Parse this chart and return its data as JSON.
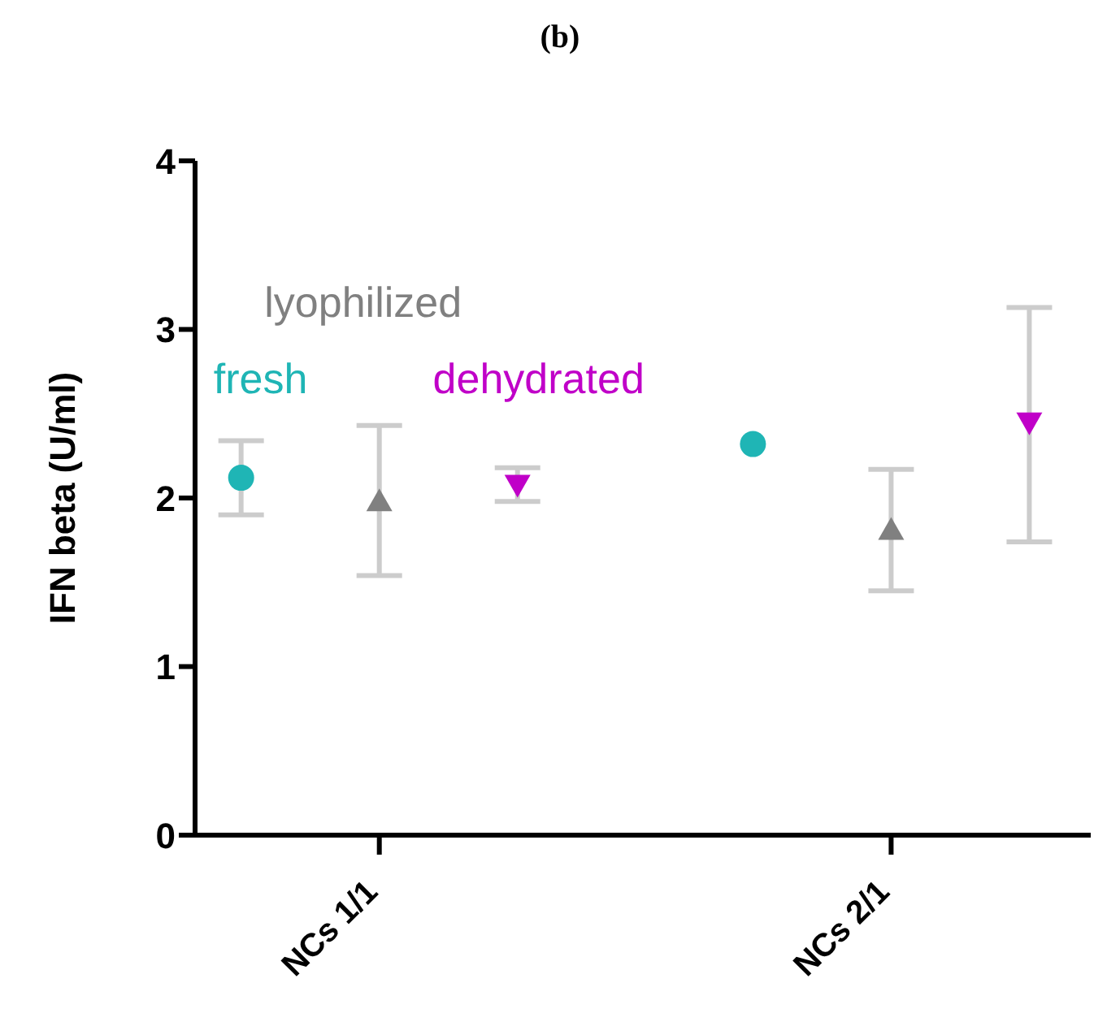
{
  "chart_data": {
    "type": "scatter",
    "title": "(b)",
    "ylabel": "IFN beta (U/ml)",
    "categories": [
      "NCs 1/1",
      "NCs 2/1"
    ],
    "ylim": [
      0,
      4
    ],
    "yticks": [
      0,
      1,
      2,
      3,
      4
    ],
    "series": [
      {
        "name": "fresh",
        "color": "#1fb5b5",
        "marker": "circle",
        "values": [
          2.12,
          2.32
        ],
        "errors": [
          [
            1.9,
            2.34
          ],
          null
        ]
      },
      {
        "name": "lyophilized",
        "color": "#808080",
        "marker": "triangle",
        "values": [
          1.98,
          1.81
        ],
        "errors": [
          [
            1.54,
            2.43
          ],
          [
            1.45,
            2.17
          ]
        ]
      },
      {
        "name": "dehydrated",
        "color": "#c000c8",
        "marker": "triangle-down",
        "values": [
          2.08,
          2.45
        ],
        "errors": [
          [
            1.98,
            2.18
          ],
          [
            1.74,
            3.13
          ]
        ]
      }
    ]
  }
}
